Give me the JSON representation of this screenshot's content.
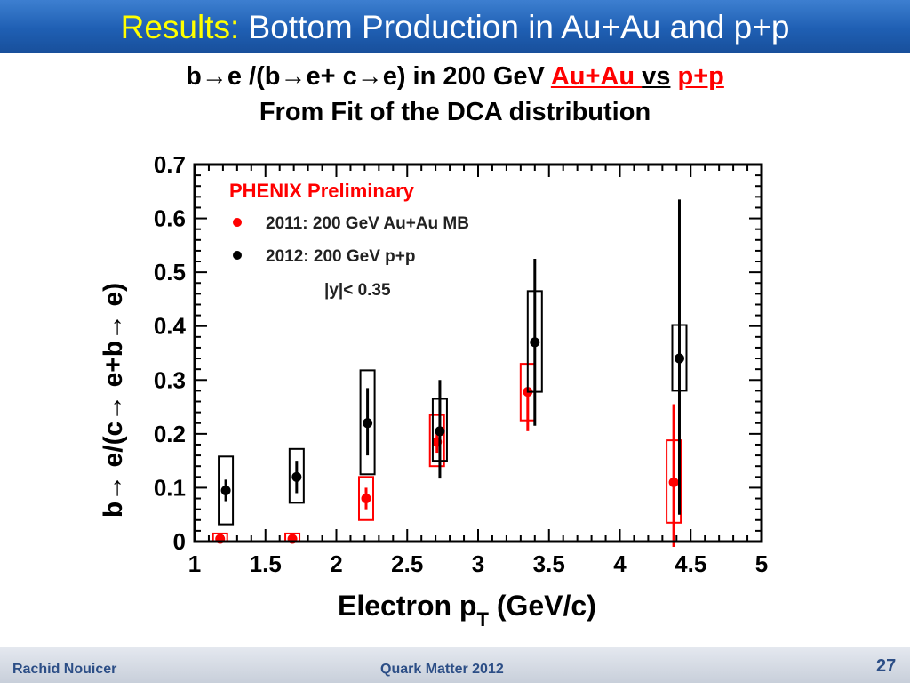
{
  "slide": {
    "title_prefix": "Results:",
    "title_main": "Bottom Production in Au+Au and p+p",
    "heading_part1": "b→e /(b→e+ c→e) in 200 GeV ",
    "heading_auau": "Au+Au ",
    "heading_vs": "vs",
    "heading_space": " ",
    "heading_pp": "p+p",
    "subheading": "From Fit of the DCA distribution"
  },
  "footer": {
    "author": "Rachid Nouicer",
    "conference": "Quark Matter 2012",
    "page": "27"
  },
  "chart_data": {
    "type": "scatter",
    "xlabel": "Electron p",
    "xlabel_sub": "T",
    "xlabel_suffix": " (GeV/c)",
    "ylabel": "b→ e/(c→ e+b→ e)",
    "xlim": [
      1,
      5
    ],
    "ylim": [
      0,
      0.7
    ],
    "xticks": [
      "1",
      "1.5",
      "2",
      "2.5",
      "3",
      "3.5",
      "4",
      "4.5",
      "5"
    ],
    "yticks": [
      "0",
      "0.1",
      "0.2",
      "0.3",
      "0.4",
      "0.5",
      "0.6",
      "0.7"
    ],
    "legend_title": "PHENIX Preliminary",
    "rapidity_note": "|y|< 0.35",
    "series": [
      {
        "name": "2011: 200 GeV Au+Au MB",
        "color": "#ff0000",
        "points": [
          {
            "x": 1.18,
            "y": 0.005,
            "stat": [
              0.0,
              0.01
            ],
            "sys": [
              0.0,
              0.015
            ]
          },
          {
            "x": 1.69,
            "y": 0.005,
            "stat": [
              0.0,
              0.01
            ],
            "sys": [
              0.0,
              0.015
            ]
          },
          {
            "x": 2.21,
            "y": 0.08,
            "stat": [
              0.06,
              0.1
            ],
            "sys": [
              0.04,
              0.12
            ]
          },
          {
            "x": 2.71,
            "y": 0.185,
            "stat": [
              0.165,
              0.205
            ],
            "sys": [
              0.14,
              0.235
            ]
          },
          {
            "x": 3.35,
            "y": 0.278,
            "stat": [
              0.205,
              0.285
            ],
            "sys": [
              0.225,
              0.33
            ]
          },
          {
            "x": 4.38,
            "y": 0.11,
            "stat": [
              -0.01,
              0.255
            ],
            "sys": [
              0.035,
              0.188
            ]
          }
        ]
      },
      {
        "name": "2012: 200 GeV p+p",
        "color": "#000000",
        "points": [
          {
            "x": 1.22,
            "y": 0.095,
            "stat": [
              0.075,
              0.115
            ],
            "sys": [
              0.032,
              0.158
            ]
          },
          {
            "x": 1.72,
            "y": 0.12,
            "stat": [
              0.09,
              0.15
            ],
            "sys": [
              0.072,
              0.172
            ]
          },
          {
            "x": 2.22,
            "y": 0.22,
            "stat": [
              0.16,
              0.285
            ],
            "sys": [
              0.125,
              0.318
            ]
          },
          {
            "x": 2.73,
            "y": 0.205,
            "stat": [
              0.117,
              0.3
            ],
            "sys": [
              0.15,
              0.265
            ]
          },
          {
            "x": 3.4,
            "y": 0.37,
            "stat": [
              0.215,
              0.525
            ],
            "sys": [
              0.278,
              0.465
            ]
          },
          {
            "x": 4.42,
            "y": 0.34,
            "stat": [
              0.05,
              0.635
            ],
            "sys": [
              0.28,
              0.402
            ]
          }
        ]
      }
    ]
  }
}
